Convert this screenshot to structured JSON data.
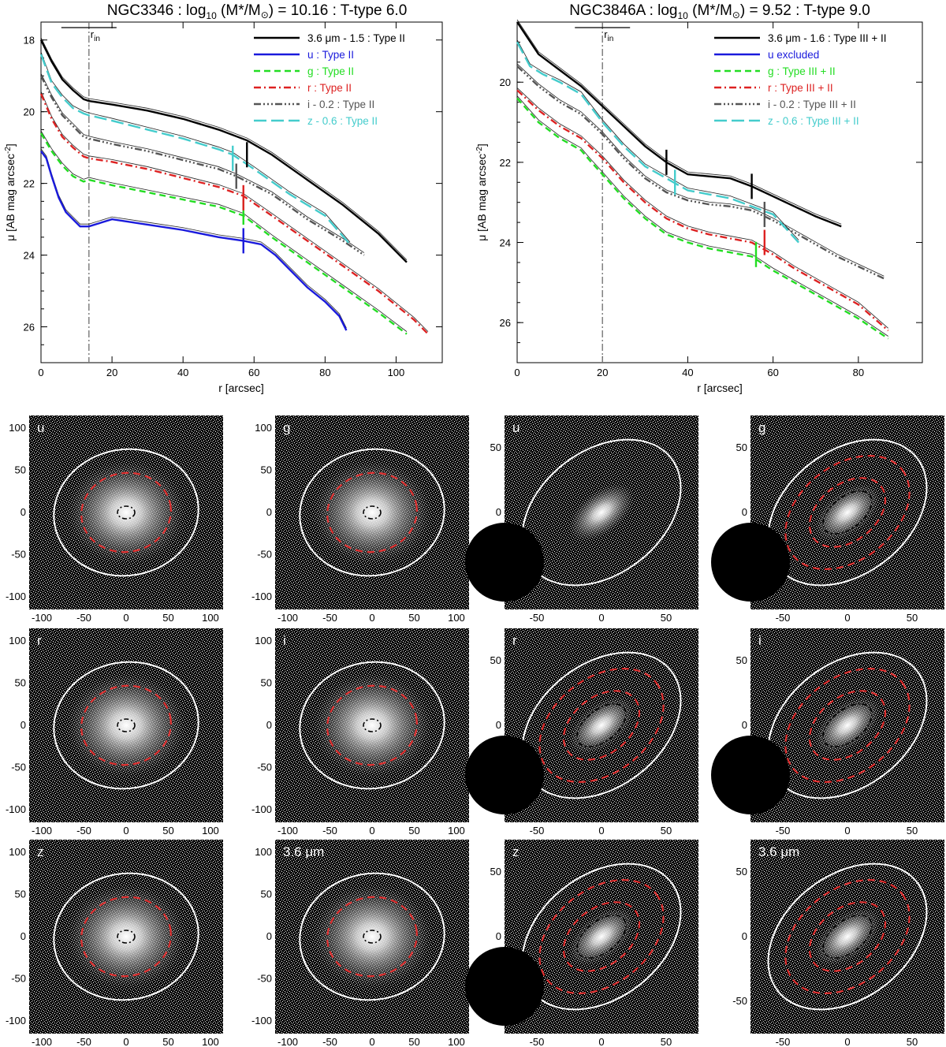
{
  "figure": {
    "left_plot": {
      "title": "NGC3346 : log",
      "title_sub": "10",
      "title_rest": " (M*/M",
      "title_sun": "⊙",
      "title_end": ") = 10.16 : T-type 6.0",
      "xlabel": "r [arcsec]",
      "ylabel": "μ [AB mag arcsec",
      "ylabel_sup": "-2",
      "ylabel_end": "]",
      "rin_label": "r",
      "rin_sub": "in",
      "xticks": [
        "0",
        "20",
        "40",
        "60",
        "80",
        "100"
      ],
      "yticks": [
        "18",
        "20",
        "22",
        "24",
        "26"
      ],
      "legend": [
        {
          "label": "3.6 μm - 1.5 : Type II",
          "color": "#000000",
          "dash": ""
        },
        {
          "label": "u : Type II",
          "color": "#1a1adc",
          "dash": ""
        },
        {
          "label": "g : Type II",
          "color": "#22dd22",
          "dash": "8,5"
        },
        {
          "label": "r : Type II",
          "color": "#dd2222",
          "dash": "9,4,2,4"
        },
        {
          "label": "i - 0.2 : Type II",
          "color": "#555555",
          "dash": "9,3,2,3,2,3,2,3"
        },
        {
          "label": "z - 0.6 : Type II",
          "color": "#44cccc",
          "dash": "16,6"
        }
      ]
    },
    "right_plot": {
      "title": "NGC3846A : log",
      "title_sub": "10",
      "title_rest": " (M*/M",
      "title_sun": "⊙",
      "title_end": ") = 9.52 : T-type 9.0",
      "xlabel": "r [arcsec]",
      "ylabel": "μ [AB mag arcsec",
      "ylabel_sup": "-2",
      "ylabel_end": "]",
      "rin_label": "r",
      "rin_sub": "in",
      "xticks": [
        "0",
        "20",
        "40",
        "60",
        "80"
      ],
      "yticks": [
        "20",
        "22",
        "24",
        "26"
      ],
      "legend": [
        {
          "label": "3.6 μm - 1.6 : Type III + II",
          "color": "#000000",
          "dash": ""
        },
        {
          "label": "u excluded",
          "color": "#1a1adc",
          "dash": ""
        },
        {
          "label": "g : Type III + II",
          "color": "#22dd22",
          "dash": "8,5"
        },
        {
          "label": "r : Type III + II",
          "color": "#dd2222",
          "dash": "9,4,2,4"
        },
        {
          "label": "i - 0.2 : Type III + II",
          "color": "#555555",
          "dash": "9,3,2,3,2,3,2,3"
        },
        {
          "label": "z - 0.6 : Type III + II",
          "color": "#44cccc",
          "dash": "16,6"
        }
      ]
    },
    "images": {
      "left_bands": [
        "u",
        "g",
        "r",
        "i",
        "z",
        "3.6 μm"
      ],
      "right_bands": [
        "u",
        "g",
        "r",
        "i",
        "z",
        "3.6 μm"
      ],
      "left_ticks": [
        "-100",
        "-50",
        "0",
        "50",
        "100"
      ],
      "right_ticks": [
        "-50",
        "0",
        "50"
      ]
    }
  },
  "chart_data": [
    {
      "type": "line",
      "title": "NGC3346 : log10 (M*/M⊙) = 10.16 : T-type 6.0",
      "xlabel": "r [arcsec]",
      "ylabel": "μ [AB mag arcsec-2]",
      "xlim": [
        0,
        113
      ],
      "ylim": [
        27,
        17.5
      ],
      "r_in": 13.5,
      "series": [
        {
          "name": "3.6 μm - 1.5",
          "x": [
            0,
            3,
            6,
            9,
            12,
            13.5,
            20,
            30,
            40,
            50,
            58,
            65,
            75,
            85,
            95,
            103
          ],
          "y": [
            18.0,
            18.6,
            19.1,
            19.4,
            19.65,
            19.7,
            19.8,
            19.97,
            20.2,
            20.5,
            20.8,
            21.2,
            21.9,
            22.6,
            23.4,
            24.2
          ]
        },
        {
          "name": "u",
          "x": [
            0,
            1.5,
            3,
            5,
            7,
            9,
            11,
            13.5,
            20,
            30,
            40,
            50,
            57,
            62,
            66,
            70,
            75,
            80,
            84,
            86
          ],
          "y": [
            21.1,
            21.3,
            21.8,
            22.4,
            22.8,
            23.0,
            23.2,
            23.2,
            23.0,
            23.15,
            23.3,
            23.5,
            23.6,
            23.7,
            24.0,
            24.4,
            24.9,
            25.3,
            25.7,
            26.1
          ]
        },
        {
          "name": "g",
          "x": [
            0,
            3,
            6,
            9,
            12,
            13.5,
            20,
            30,
            40,
            50,
            57,
            65,
            75,
            85,
            95,
            103
          ],
          "y": [
            20.6,
            21.1,
            21.5,
            21.8,
            21.95,
            21.9,
            22.05,
            22.25,
            22.45,
            22.65,
            22.9,
            23.5,
            24.2,
            24.9,
            25.6,
            26.2
          ]
        },
        {
          "name": "r",
          "x": [
            0,
            3,
            6,
            9,
            12,
            13.5,
            20,
            30,
            40,
            50,
            57,
            65,
            75,
            85,
            95,
            105,
            109
          ],
          "y": [
            19.5,
            20.2,
            20.7,
            21.0,
            21.25,
            21.3,
            21.4,
            21.6,
            21.85,
            22.1,
            22.35,
            22.9,
            23.6,
            24.3,
            25.0,
            25.8,
            26.2
          ]
        },
        {
          "name": "i - 0.2",
          "x": [
            0,
            3,
            6,
            9,
            12,
            13.5,
            20,
            30,
            40,
            50,
            55,
            65,
            75,
            85,
            91
          ],
          "y": [
            19.0,
            19.6,
            20.1,
            20.4,
            20.7,
            20.75,
            20.9,
            21.1,
            21.35,
            21.6,
            21.8,
            22.3,
            23.0,
            23.6,
            24.0
          ]
        },
        {
          "name": "z - 0.6",
          "x": [
            0,
            3,
            6,
            9,
            12,
            13.5,
            20,
            30,
            40,
            50,
            54,
            60,
            70,
            80,
            87
          ],
          "y": [
            18.4,
            19.2,
            19.6,
            19.9,
            20.05,
            20.1,
            20.25,
            20.5,
            20.75,
            21.05,
            21.2,
            21.6,
            22.3,
            22.9,
            23.7
          ]
        }
      ],
      "breaks": [
        {
          "band": "3.6 μm",
          "r": 58,
          "mu": 21.2
        },
        {
          "band": "u",
          "r": 57,
          "mu": 23.6
        },
        {
          "band": "g",
          "r": 57,
          "mu": 22.8
        },
        {
          "band": "r",
          "r": 57,
          "mu": 22.4
        },
        {
          "band": "i",
          "r": 55,
          "mu": 21.8
        },
        {
          "band": "z",
          "r": 54,
          "mu": 21.3
        }
      ]
    },
    {
      "type": "line",
      "title": "NGC3846A : log10 (M*/M⊙) = 9.52 : T-type 9.0",
      "xlabel": "r [arcsec]",
      "ylabel": "μ [AB mag arcsec-2]",
      "xlim": [
        0,
        95
      ],
      "ylim": [
        27,
        18.5
      ],
      "r_in": 20,
      "series": [
        {
          "name": "3.6 μm - 1.6",
          "x": [
            0,
            5,
            10,
            15,
            20,
            25,
            30,
            35,
            40,
            45,
            50,
            55,
            60,
            65,
            70,
            76
          ],
          "y": [
            18.5,
            19.3,
            19.7,
            20.1,
            20.6,
            21.1,
            21.6,
            22.0,
            22.3,
            22.35,
            22.4,
            22.6,
            22.85,
            23.1,
            23.35,
            23.6
          ]
        },
        {
          "name": "g",
          "x": [
            0,
            5,
            10,
            15,
            17,
            20,
            25,
            30,
            35,
            40,
            45,
            50,
            55,
            60,
            65,
            70,
            75,
            80,
            87
          ],
          "y": [
            20.4,
            21.0,
            21.4,
            21.7,
            21.95,
            22.3,
            22.9,
            23.4,
            23.8,
            24.0,
            24.15,
            24.25,
            24.35,
            24.7,
            25.0,
            25.3,
            25.6,
            25.9,
            26.4
          ]
        },
        {
          "name": "r",
          "x": [
            0,
            5,
            10,
            15,
            20,
            25,
            30,
            35,
            40,
            45,
            50,
            55,
            60,
            65,
            70,
            75,
            80,
            87
          ],
          "y": [
            20.2,
            20.7,
            21.1,
            21.4,
            21.9,
            22.5,
            23.0,
            23.4,
            23.65,
            23.8,
            23.9,
            24.0,
            24.3,
            24.65,
            24.95,
            25.25,
            25.55,
            26.2
          ]
        },
        {
          "name": "i - 0.2",
          "x": [
            0,
            5,
            10,
            15,
            20,
            25,
            30,
            35,
            40,
            45,
            50,
            55,
            60,
            65,
            70,
            75,
            80,
            86
          ],
          "y": [
            19.6,
            20.1,
            20.5,
            20.8,
            21.3,
            21.9,
            22.4,
            22.75,
            22.95,
            23.05,
            23.1,
            23.2,
            23.45,
            23.75,
            24.05,
            24.35,
            24.6,
            24.9
          ]
        },
        {
          "name": "z - 0.6",
          "x": [
            0,
            3,
            6,
            10,
            15,
            20,
            25,
            30,
            35,
            40,
            45,
            50,
            55,
            60,
            66
          ],
          "y": [
            19.0,
            19.6,
            19.8,
            20.0,
            20.3,
            21.0,
            21.6,
            22.1,
            22.4,
            22.7,
            22.8,
            22.9,
            23.1,
            23.3,
            24.0
          ]
        }
      ],
      "breaks": [
        {
          "band": "3.6 μm",
          "r": 35,
          "mu": 22.0
        },
        {
          "band": "z",
          "r": 37,
          "mu": 22.5
        },
        {
          "band": "3.6 μm",
          "r": 55,
          "mu": 22.6
        },
        {
          "band": "g",
          "r": 56,
          "mu": 24.3
        },
        {
          "band": "r",
          "r": 58,
          "mu": 24.0
        },
        {
          "band": "i",
          "r": 58,
          "mu": 23.3
        }
      ]
    }
  ]
}
